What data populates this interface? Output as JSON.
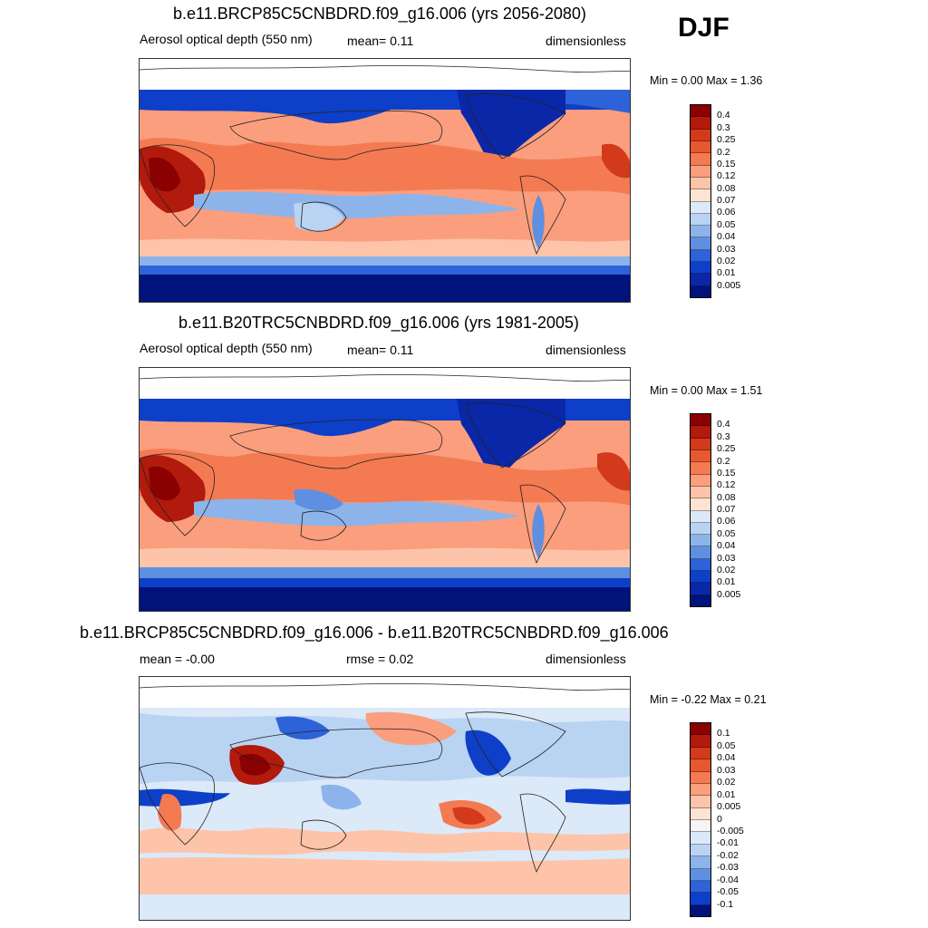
{
  "season": "DJF",
  "panels": [
    {
      "title": "b.e11.BRCP85C5CNBDRD.f09_g16.006 (yrs 2056-2080)",
      "variable": "Aerosol optical depth (550 nm)",
      "stat": "mean=   0.11",
      "units": "dimensionless",
      "minmax": "Min =    0.00 Max =    1.36",
      "levels": [
        "0.4",
        "0.3",
        "0.25",
        "0.2",
        "0.15",
        "0.12",
        "0.08",
        "0.07",
        "0.06",
        "0.05",
        "0.04",
        "0.03",
        "0.02",
        "0.01",
        "0.005"
      ]
    },
    {
      "title": "b.e11.B20TRC5CNBDRD.f09_g16.006 (yrs 1981-2005)",
      "variable": "Aerosol optical depth (550 nm)",
      "stat": "mean=   0.11",
      "units": "dimensionless",
      "minmax": "Min =    0.00 Max =    1.51",
      "levels": [
        "0.4",
        "0.3",
        "0.25",
        "0.2",
        "0.15",
        "0.12",
        "0.08",
        "0.07",
        "0.06",
        "0.05",
        "0.04",
        "0.03",
        "0.02",
        "0.01",
        "0.005"
      ]
    },
    {
      "title": "b.e11.BRCP85C5CNBDRD.f09_g16.006 - b.e11.B20TRC5CNBDRD.f09_g16.006",
      "variable": "mean =  -0.00",
      "stat": "rmse =   0.02",
      "units": "dimensionless",
      "minmax": "Min =  -0.22 Max =    0.21",
      "levels": [
        "0.1",
        "0.05",
        "0.04",
        "0.03",
        "0.02",
        "0.01",
        "0.005",
        "0",
        "-0.005",
        "-0.01",
        "-0.02",
        "-0.03",
        "-0.04",
        "-0.05",
        "-0.1"
      ]
    }
  ],
  "colors": {
    "abs_scale": [
      "#8b0000",
      "#b11a0c",
      "#d23a1b",
      "#e8582e",
      "#f47a52",
      "#fa9e7e",
      "#fdc4a9",
      "#fde3d4",
      "#dbe9f8",
      "#b9d3f3",
      "#8cb4ea",
      "#5f8fe0",
      "#2e62d8",
      "#0e3fc9",
      "#0a27a8",
      "#00137a"
    ],
    "diff_scale": [
      "#8b0000",
      "#b11a0c",
      "#d23a1b",
      "#e8582e",
      "#f47a52",
      "#fa9e7e",
      "#fdc4a9",
      "#fde3d4",
      "#f5f5f5",
      "#dbe9f8",
      "#b9d3f3",
      "#8cb4ea",
      "#5f8fe0",
      "#2e62d8",
      "#0e3fc9",
      "#00137a"
    ]
  }
}
